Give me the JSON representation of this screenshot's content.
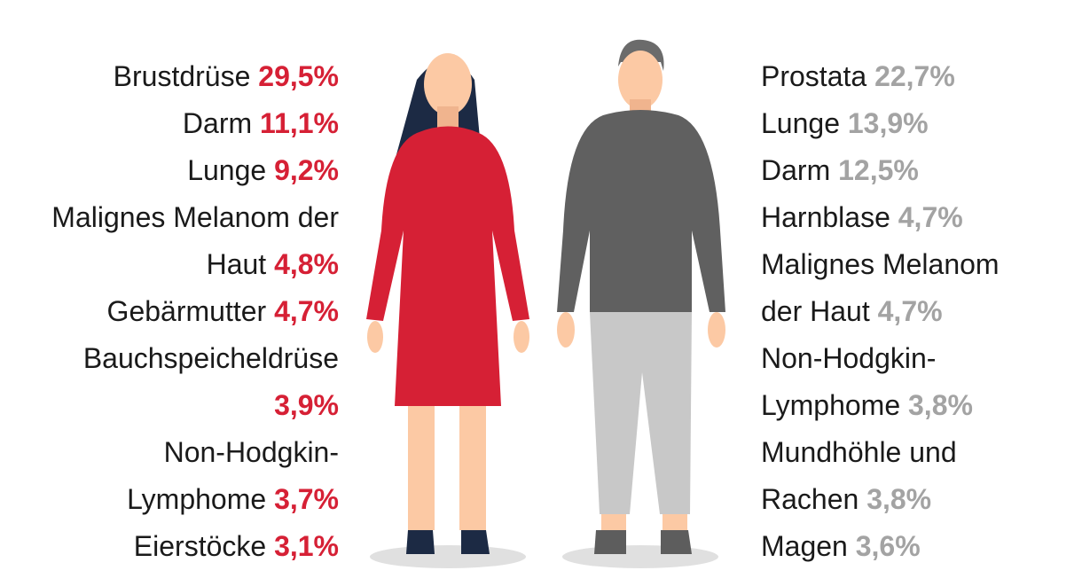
{
  "women": [
    {
      "label": "Brustdrüse",
      "value": "29,5%"
    },
    {
      "label": "Darm",
      "value": "11,1%"
    },
    {
      "label": "Lunge",
      "value": "9,2%"
    },
    {
      "label": "Malignes Melanom der Haut",
      "value": "4,8%"
    },
    {
      "label": "Gebärmutter",
      "value": "4,7%"
    },
    {
      "label": "Bauchspeicheldrüse",
      "value": "3,9%"
    },
    {
      "label": "Non-Hodgkin-Lymphome",
      "value": "3,7%"
    },
    {
      "label": "Eierstöcke",
      "value": "3,1%"
    }
  ],
  "men": [
    {
      "label": "Prostata",
      "value": "22,7%"
    },
    {
      "label": "Lunge",
      "value": "13,9%"
    },
    {
      "label": "Darm",
      "value": "12,5%"
    },
    {
      "label": "Harnblase",
      "value": "4,7%"
    },
    {
      "label": "Malignes Melanom der Haut",
      "value": "4,7%"
    },
    {
      "label": "Non-Hodgkin-Lymphome",
      "value": "3,8%"
    },
    {
      "label": "Mundhöhle und Rachen",
      "value": "3,8%"
    },
    {
      "label": "Magen",
      "value": "3,6%"
    }
  ]
}
